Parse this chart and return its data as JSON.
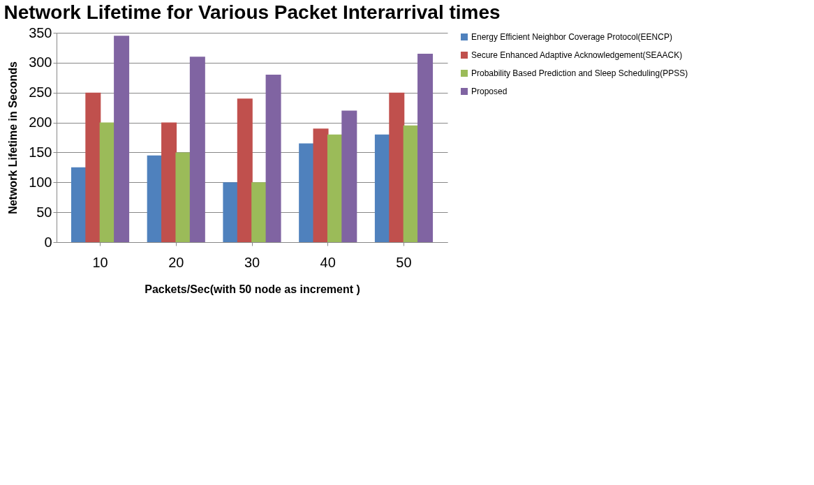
{
  "chart_data": {
    "type": "bar",
    "title": "Network Lifetime for Various Packet Interarrival times",
    "xlabel": "Packets/Sec(with 50 node as increment )",
    "ylabel": "Network Lifetime in Seconds",
    "categories": [
      "10",
      "20",
      "30",
      "40",
      "50"
    ],
    "series": [
      {
        "name": "Energy Efficient Neighbor Coverage Protocol(EENCP)",
        "color": "#4f81bd",
        "values": [
          125,
          145,
          100,
          165,
          180
        ]
      },
      {
        "name": "Secure Enhanced Adaptive Acknowledgement(SEAACK)",
        "color": "#c0504d",
        "values": [
          250,
          200,
          240,
          190,
          250
        ]
      },
      {
        "name": "Probability Based Prediction and Sleep Scheduling(PPSS)",
        "color": "#9bbb59",
        "values": [
          200,
          150,
          100,
          180,
          195
        ]
      },
      {
        "name": "Proposed",
        "color": "#8064a2",
        "values": [
          345,
          310,
          280,
          220,
          315
        ]
      }
    ],
    "ylim": [
      0,
      350
    ],
    "yticks": [
      0,
      50,
      100,
      150,
      200,
      250,
      300,
      350
    ],
    "grid": "y",
    "legend": "right"
  }
}
